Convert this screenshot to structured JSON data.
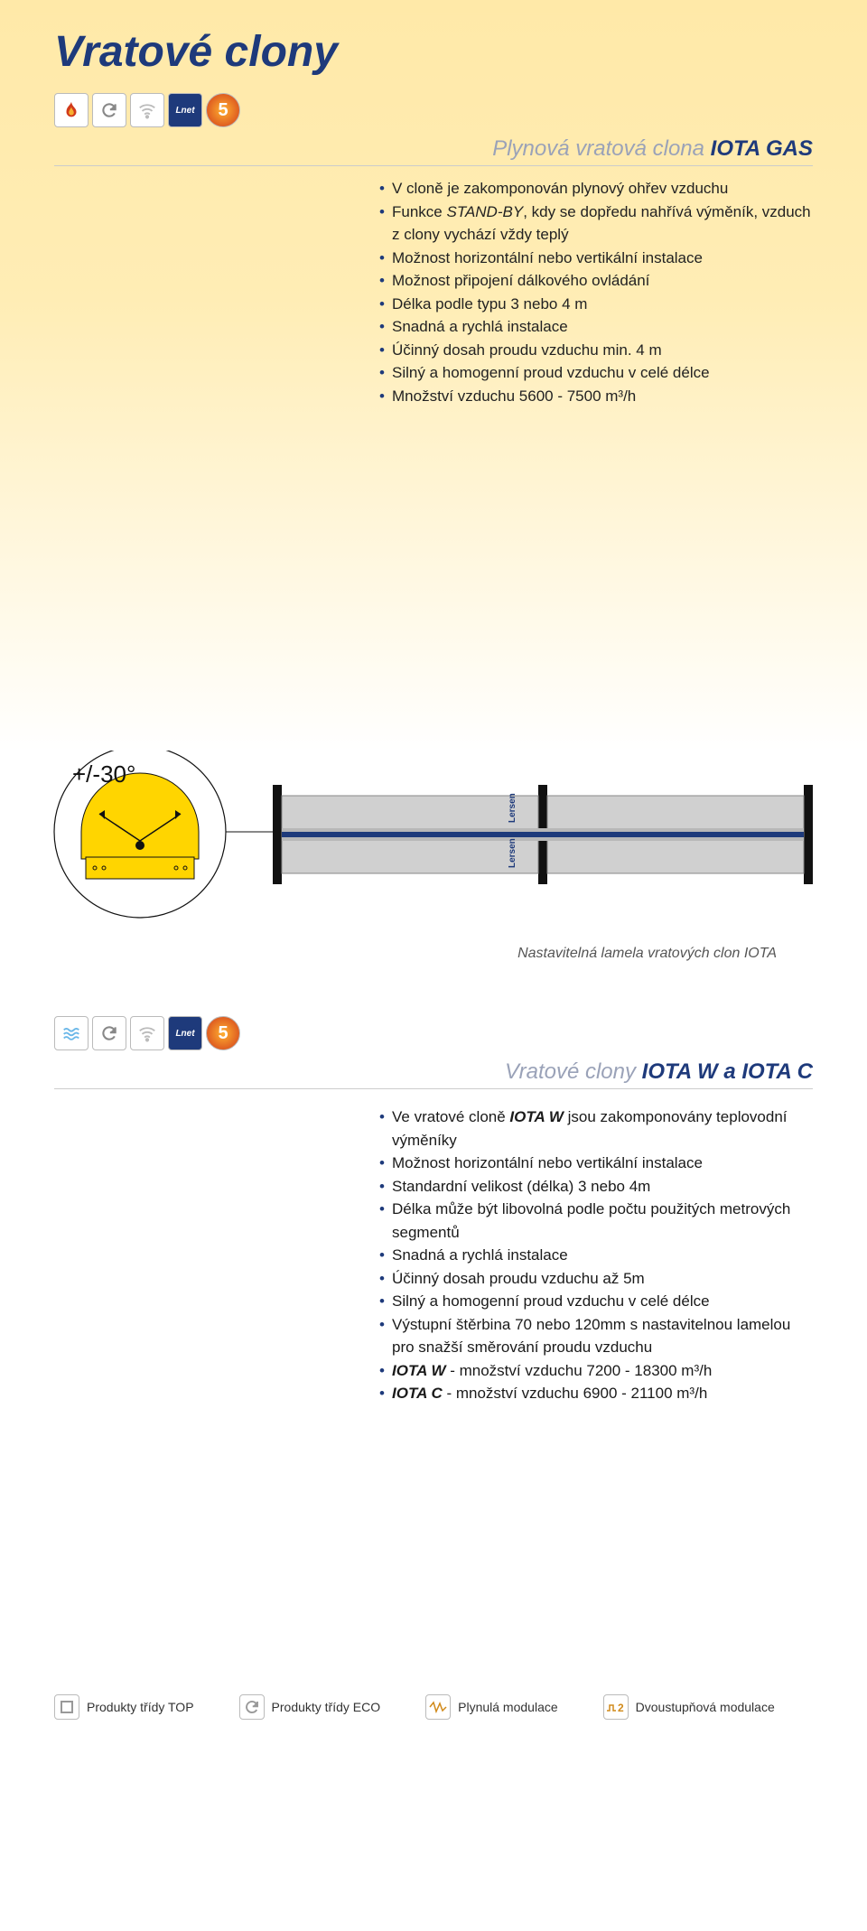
{
  "page_title": "Vratové clony",
  "section1": {
    "subtitle_prefix": "Plynová vratová clona ",
    "subtitle_strong": "IOTA GAS",
    "bullets": [
      "V cloně je zakomponován plynový ohřev vzduchu",
      "Funkce <em>STAND-BY</em>, kdy se dopředu nahřívá výměník, vzduch z clony vychází vždy teplý",
      "Možnost horizontální nebo vertikální instalace",
      "Možnost připojení dálkového ovládání",
      "Délka podle typu 3 nebo 4 m",
      "Snadná a rychlá instalace",
      "Účinný dosah proudu vzduchu min. 4 m",
      "Silný a homogenní proud vzduchu v celé délce",
      "Množství vzduchu 5600 - 7500 m³/h"
    ]
  },
  "diagram": {
    "angle_label": "+/-30°",
    "caption": "Nastavitelná lamela vratových clon IOTA",
    "colors": {
      "yellow": "#ffd500",
      "body_grey": "#d0d0d0",
      "stripe_blue": "#1e3a7b",
      "bracket_black": "#111111",
      "circle_stroke": "#111111",
      "bg": "#ffffff"
    }
  },
  "section2": {
    "subtitle_prefix": "Vratové clony ",
    "subtitle_strong": "IOTA W a IOTA C",
    "bullets": [
      "Ve vratové cloně <span class=\"bold\">IOTA W</span> jsou zakomponovány teplovodní výměníky",
      "Možnost horizontální nebo vertikální instalace",
      "Standardní velikost (délka) 3 nebo 4m",
      "Délka může být libovolná podle počtu použitých metrových segmentů",
      "Snadná a rychlá instalace",
      "Účinný dosah proudu vzduchu až 5m",
      "Silný a homogenní proud vzduchu v celé délce",
      "Výstupní štěrbina 70 nebo 120mm s nastavitelnou lamelou pro snažší směrování proudu vzduchu",
      "<span class=\"bold\">IOTA W</span> - množství vzduchu 7200 - 18300 m³/h",
      "<span class=\"bold\">IOTA C</span> - množství vzduchu 6900 - 21100 m³/h"
    ]
  },
  "footer": {
    "items": [
      {
        "icon": "square",
        "label": "Produkty třídy TOP"
      },
      {
        "icon": "refresh",
        "label": "Produkty třídy ECO"
      },
      {
        "icon": "wave",
        "label": "Plynulá modulace"
      },
      {
        "icon": "two",
        "label": "Dvoustupňová modulace"
      }
    ]
  },
  "icons": {
    "flame": "♨",
    "refresh": "⟳",
    "wifi": "◉",
    "lnet": "Lnet",
    "five": "5",
    "waves": "≋"
  }
}
